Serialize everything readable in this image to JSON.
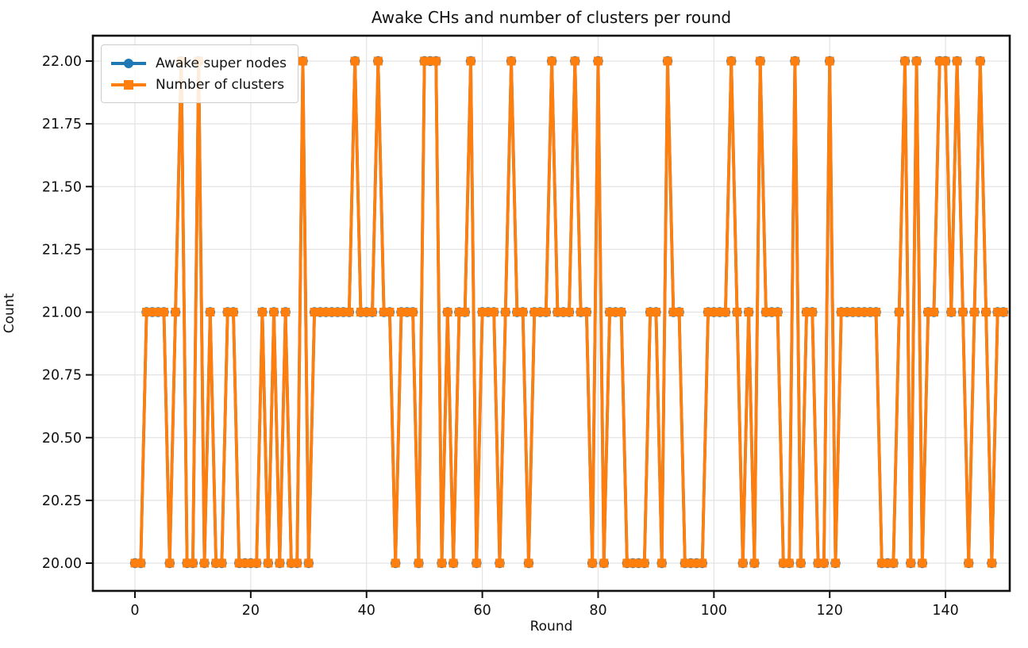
{
  "title": "Awake CHs and number of clusters per round",
  "xlabel": "Round",
  "ylabel": "Count",
  "legend": [
    {
      "label": "Awake super nodes",
      "color": "#1f77b4",
      "marker": "circle"
    },
    {
      "label": "Number of clusters",
      "color": "#ff7f0e",
      "marker": "square"
    }
  ],
  "axes": {
    "x_ticks": [
      0,
      20,
      40,
      60,
      80,
      100,
      120,
      140
    ],
    "y_ticks": [
      20.0,
      20.25,
      20.5,
      20.75,
      21.0,
      21.25,
      21.5,
      21.75,
      22.0
    ],
    "y_tick_labels": [
      "20.00",
      "20.25",
      "20.50",
      "20.75",
      "21.00",
      "21.25",
      "21.50",
      "21.75",
      "22.00"
    ],
    "grid": true
  },
  "chart_data": {
    "type": "line",
    "title": "Awake CHs and number of clusters per round",
    "xlabel": "Round",
    "ylabel": "Count",
    "x_start": 0,
    "x_step": 1,
    "xlim": [
      -7.5,
      157.5
    ],
    "ylim": [
      19.9,
      22.1
    ],
    "grid": true,
    "legend_position": "upper left",
    "note": "x = round index; both series overlap exactly (orange drawn over blue)",
    "series": [
      {
        "name": "Awake super nodes",
        "color": "#1f77b4",
        "marker": "circle",
        "values": [
          20,
          20,
          21,
          21,
          21,
          21,
          20,
          21,
          22,
          20,
          20,
          22,
          20,
          21,
          20,
          20,
          21,
          21,
          20,
          20,
          20,
          20,
          21,
          20,
          21,
          20,
          21,
          20,
          20,
          22,
          20,
          21,
          21,
          21,
          21,
          21,
          21,
          21,
          22,
          21,
          21,
          21,
          22,
          21,
          21,
          20,
          21,
          21,
          21,
          20,
          22,
          22,
          22,
          20,
          21,
          20,
          21,
          21,
          22,
          20,
          21,
          21,
          21,
          20,
          21,
          22,
          21,
          21,
          20,
          21,
          21,
          21,
          22,
          21,
          21,
          21,
          22,
          21,
          21,
          20,
          22,
          20,
          21,
          21,
          21,
          20,
          20,
          20,
          20,
          21,
          21,
          20,
          22,
          21,
          21,
          20,
          20,
          20,
          20,
          21,
          21,
          21,
          21,
          22,
          21,
          20,
          21,
          20,
          22,
          21,
          21,
          21,
          20,
          20,
          22,
          20,
          21,
          21,
          20,
          20,
          22,
          20,
          21,
          21,
          21,
          21,
          21,
          21,
          21,
          20,
          20,
          20,
          21,
          22,
          20,
          22,
          20,
          21,
          21,
          22,
          22,
          21,
          22,
          21,
          20,
          21,
          22,
          21,
          20,
          21,
          21
        ]
      },
      {
        "name": "Number of clusters",
        "color": "#ff7f0e",
        "marker": "square",
        "values": [
          20,
          20,
          21,
          21,
          21,
          21,
          20,
          21,
          22,
          20,
          20,
          22,
          20,
          21,
          20,
          20,
          21,
          21,
          20,
          20,
          20,
          20,
          21,
          20,
          21,
          20,
          21,
          20,
          20,
          22,
          20,
          21,
          21,
          21,
          21,
          21,
          21,
          21,
          22,
          21,
          21,
          21,
          22,
          21,
          21,
          20,
          21,
          21,
          21,
          20,
          22,
          22,
          22,
          20,
          21,
          20,
          21,
          21,
          22,
          20,
          21,
          21,
          21,
          20,
          21,
          22,
          21,
          21,
          20,
          21,
          21,
          21,
          22,
          21,
          21,
          21,
          22,
          21,
          21,
          20,
          22,
          20,
          21,
          21,
          21,
          20,
          20,
          20,
          20,
          21,
          21,
          20,
          22,
          21,
          21,
          20,
          20,
          20,
          20,
          21,
          21,
          21,
          21,
          22,
          21,
          20,
          21,
          20,
          22,
          21,
          21,
          21,
          20,
          20,
          22,
          20,
          21,
          21,
          20,
          20,
          22,
          20,
          21,
          21,
          21,
          21,
          21,
          21,
          21,
          20,
          20,
          20,
          21,
          22,
          20,
          22,
          20,
          21,
          21,
          22,
          22,
          21,
          22,
          21,
          20,
          21,
          22,
          21,
          20,
          21,
          21
        ]
      }
    ]
  }
}
